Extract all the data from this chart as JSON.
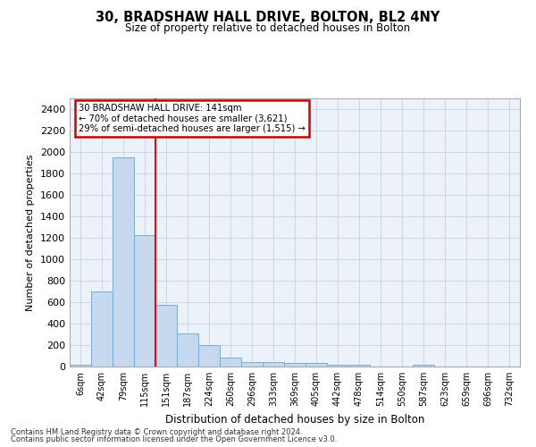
{
  "title": "30, BRADSHAW HALL DRIVE, BOLTON, BL2 4NY",
  "subtitle": "Size of property relative to detached houses in Bolton",
  "xlabel": "Distribution of detached houses by size in Bolton",
  "ylabel": "Number of detached properties",
  "categories": [
    "6sqm",
    "42sqm",
    "79sqm",
    "115sqm",
    "151sqm",
    "187sqm",
    "224sqm",
    "260sqm",
    "296sqm",
    "333sqm",
    "369sqm",
    "405sqm",
    "442sqm",
    "478sqm",
    "514sqm",
    "550sqm",
    "587sqm",
    "623sqm",
    "659sqm",
    "696sqm",
    "732sqm"
  ],
  "values": [
    15,
    700,
    1950,
    1225,
    575,
    305,
    200,
    85,
    45,
    38,
    35,
    30,
    20,
    18,
    0,
    0,
    15,
    0,
    0,
    0,
    0
  ],
  "bar_color": "#c5d8ee",
  "bar_edge_color": "#7aadd4",
  "red_line_index": 3.5,
  "annotation_line1": "30 BRADSHAW HALL DRIVE: 141sqm",
  "annotation_line2": "← 70% of detached houses are smaller (3,621)",
  "annotation_line3": "29% of semi-detached houses are larger (1,515) →",
  "annotation_box_color": "#cc0000",
  "ylim": [
    0,
    2500
  ],
  "yticks": [
    0,
    200,
    400,
    600,
    800,
    1000,
    1200,
    1400,
    1600,
    1800,
    2000,
    2200,
    2400
  ],
  "grid_color": "#d0d8e8",
  "bg_color": "#edf2fa",
  "footer1": "Contains HM Land Registry data © Crown copyright and database right 2024.",
  "footer2": "Contains public sector information licensed under the Open Government Licence v3.0."
}
